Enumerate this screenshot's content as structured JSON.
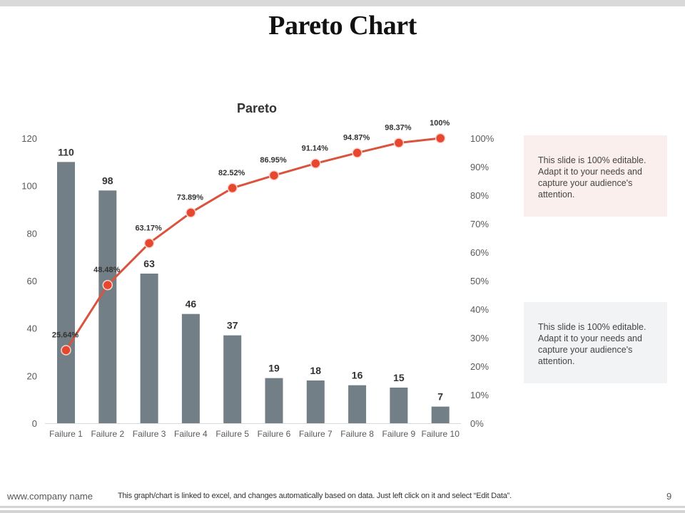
{
  "slide": {
    "title": "Pareto Chart",
    "page_number": "9"
  },
  "notes": [
    {
      "text": "This slide is 100% editable. Adapt it to your needs and capture your audience's attention.",
      "bg": "#fbefee"
    },
    {
      "text": "This slide is 100% editable. Adapt it to your needs and capture your audience's attention.",
      "bg": "#f2f3f5"
    }
  ],
  "footer": {
    "site": "www.company name",
    "note": "This graph/chart is linked to excel, and changes automatically based on data. Just left click on it and select “Edit Data”."
  },
  "colors": {
    "bar": "#737f86",
    "line": "#d9533e",
    "marker": "#e8472f",
    "marker_stroke": "#f6d6cf",
    "axis_text": "#595959",
    "label_text": "#333333"
  },
  "chart_data": {
    "type": "bar",
    "title": "Pareto",
    "categories": [
      "Failure 1",
      "Failure 2",
      "Failure 3",
      "Failure 4",
      "Failure 5",
      "Failure 6",
      "Failure 7",
      "Failure 8",
      "Failure 9",
      "Failure 10"
    ],
    "series": [
      {
        "name": "Count",
        "type": "bar",
        "axis": "left",
        "values": [
          110,
          98,
          63,
          46,
          37,
          19,
          18,
          16,
          15,
          7
        ],
        "labels": [
          "110",
          "98",
          "63",
          "46",
          "37",
          "19",
          "18",
          "16",
          "15",
          "7"
        ]
      },
      {
        "name": "Cumulative %",
        "type": "line",
        "axis": "right",
        "values": [
          25.64,
          48.48,
          63.17,
          73.89,
          82.52,
          86.95,
          91.14,
          94.87,
          98.37,
          100
        ],
        "labels": [
          "25.64%",
          "48.48%",
          "63.17%",
          "73.89%",
          "82.52%",
          "86.95%",
          "91.14%",
          "94.87%",
          "98.37%",
          "100%"
        ]
      }
    ],
    "xlabel": "",
    "ylabel": "",
    "ylim": [
      0,
      120
    ],
    "y_ticks": [
      "0",
      "20",
      "40",
      "60",
      "80",
      "100",
      "120"
    ],
    "y2lim": [
      0,
      100
    ],
    "y2_ticks": [
      "0%",
      "10%",
      "20%",
      "30%",
      "40%",
      "50%",
      "60%",
      "70%",
      "80%",
      "90%",
      "100%"
    ],
    "grid": false,
    "legend": "none"
  }
}
